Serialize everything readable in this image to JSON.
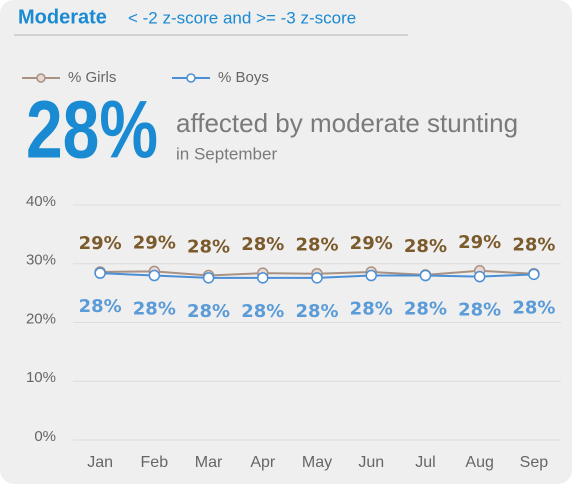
{
  "chart_data": {
    "type": "line",
    "title": "Moderate",
    "subtitle": "< -2 z-score and >= -3 z-score",
    "headline": "28%",
    "headline_text": "affected by moderate stunting",
    "headline_subtext": "in September",
    "categories": [
      "Jan",
      "Feb",
      "Mar",
      "Apr",
      "May",
      "Jun",
      "Jul",
      "Aug",
      "Sep"
    ],
    "series": [
      {
        "name": "% Girls",
        "color": "#a89283",
        "marker_fill": "#e9d8d2",
        "label_color": "#7b5a2c",
        "values": [
          28.6,
          28.7,
          28.0,
          28.4,
          28.3,
          28.6,
          28.1,
          28.8,
          28.3
        ],
        "value_labels": [
          "29%",
          "29%",
          "28%",
          "28%",
          "28%",
          "29%",
          "28%",
          "29%",
          "28%"
        ]
      },
      {
        "name": "% Boys",
        "color": "#4a8fd6",
        "marker_fill": "#ffffff",
        "label_color": "#5a9bd8",
        "values": [
          28.4,
          28.0,
          27.6,
          27.6,
          27.6,
          28.0,
          28.0,
          27.8,
          28.2
        ],
        "value_labels": [
          "28%",
          "28%",
          "28%",
          "28%",
          "28%",
          "28%",
          "28%",
          "28%",
          "28%"
        ]
      }
    ],
    "ylim": [
      0,
      40
    ],
    "yticks": [
      {
        "value": 0,
        "label": "0%"
      },
      {
        "value": 10,
        "label": "10%"
      },
      {
        "value": 20,
        "label": "20%"
      },
      {
        "value": 30,
        "label": "30%"
      },
      {
        "value": 40,
        "label": "40%"
      }
    ],
    "grid": true,
    "legend": "top-left"
  }
}
